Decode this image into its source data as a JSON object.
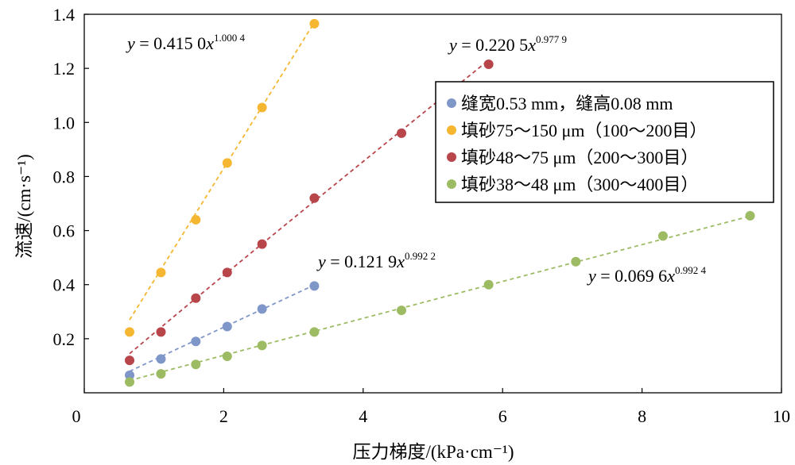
{
  "chart_data": {
    "type": "scatter",
    "xlabel": "压力梯度/(kPa·cm⁻¹)",
    "ylabel": "流速/(cm·s⁻¹)",
    "xlim": [
      0,
      10
    ],
    "ylim": [
      0,
      1.4
    ],
    "x_ticks": [
      "0",
      "2",
      "4",
      "6",
      "8",
      "10"
    ],
    "y_ticks": [
      "0.2",
      "0.4",
      "0.6",
      "0.8",
      "1.0",
      "1.2",
      "1.4"
    ],
    "grid": false,
    "legend_position": "top-right",
    "series": [
      {
        "name": "缝宽0.53 mm，缝高0.08 mm",
        "color": "#7f96c8",
        "x": [
          0.65,
          1.1,
          1.6,
          2.05,
          2.55,
          3.3
        ],
        "y": [
          0.065,
          0.125,
          0.19,
          0.245,
          0.31,
          0.395
        ],
        "fit": {
          "a": 0.1219,
          "b": 0.9922
        },
        "equation": {
          "y": "y",
          "eq": " = 0.121 9",
          "x": "x",
          "exp": "0.992 2"
        }
      },
      {
        "name": "填砂75～150 μm（100～200目）",
        "color": "#f5b731",
        "x": [
          0.65,
          1.1,
          1.6,
          2.05,
          2.55,
          3.3
        ],
        "y": [
          0.225,
          0.445,
          0.64,
          0.85,
          1.055,
          1.365
        ],
        "fit": {
          "a": 0.415,
          "b": 1.0004
        },
        "equation": {
          "y": "y",
          "eq": " = 0.415 0",
          "x": "x",
          "exp": "1.000 4"
        }
      },
      {
        "name": "填砂48～75 μm（200～300目）",
        "color": "#b8454a",
        "x": [
          0.65,
          1.1,
          1.6,
          2.05,
          2.55,
          3.3,
          4.55,
          5.8
        ],
        "y": [
          0.12,
          0.225,
          0.35,
          0.445,
          0.55,
          0.72,
          0.96,
          1.215
        ],
        "fit": {
          "a": 0.2205,
          "b": 0.9779
        },
        "equation": {
          "y": "y",
          "eq": " = 0.220 5",
          "x": "x",
          "exp": "0.977 9"
        }
      },
      {
        "name": "填砂38～48 μm（300～400目）",
        "color": "#9cbb63",
        "x": [
          0.65,
          1.1,
          1.6,
          2.05,
          2.55,
          3.3,
          4.55,
          5.8,
          7.05,
          8.3,
          9.55
        ],
        "y": [
          0.04,
          0.07,
          0.105,
          0.135,
          0.175,
          0.225,
          0.305,
          0.4,
          0.485,
          0.58,
          0.655
        ],
        "fit": {
          "a": 0.0696,
          "b": 0.9924
        },
        "equation": {
          "y": "y",
          "eq": " = 0.069 6",
          "x": "x",
          "exp": "0.992 4"
        }
      }
    ]
  }
}
